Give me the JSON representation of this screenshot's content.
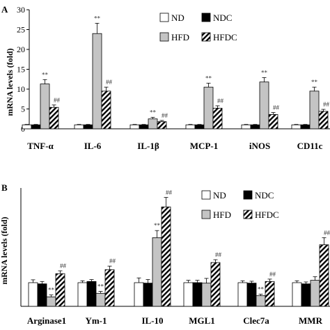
{
  "chart_data": [
    {
      "type": "bar",
      "panel_label": "A",
      "ylabel": "mRNA levels (fold)",
      "ylim": [
        0,
        30
      ],
      "yticks": [
        0,
        5,
        10,
        15,
        20,
        25,
        30
      ],
      "grid": false,
      "legend": "top-right",
      "categories": [
        "TNF-α",
        "IL-6",
        "IL-1β",
        "MCP-1",
        "iNOS",
        "CD11c"
      ],
      "series": [
        {
          "name": "ND",
          "values": [
            1,
            1,
            1,
            1,
            1,
            1
          ],
          "errors": [
            0.1,
            0.1,
            0.1,
            0.1,
            0.1,
            0.1
          ]
        },
        {
          "name": "NDC",
          "values": [
            1,
            1,
            1,
            1,
            1,
            1
          ],
          "errors": [
            0.1,
            0.1,
            0.1,
            0.1,
            0.1,
            0.1
          ]
        },
        {
          "name": "HFD",
          "values": [
            11.3,
            24,
            2.5,
            10.5,
            11.8,
            9.5
          ],
          "errors": [
            1.1,
            2.6,
            0.4,
            1.0,
            1.1,
            1.0
          ]
        },
        {
          "name": "HFDC",
          "values": [
            5.4,
            9.5,
            1.8,
            5.2,
            3.6,
            4.4
          ],
          "errors": [
            0.6,
            1.0,
            0.3,
            0.6,
            0.5,
            0.5
          ]
        }
      ],
      "annotations": [
        {
          "series": "HFD",
          "labels": [
            "**",
            "**",
            "**",
            "**",
            "**",
            "**"
          ]
        },
        {
          "series": "HFDC",
          "labels": [
            "##",
            "##",
            "##",
            "##",
            "##",
            "##"
          ]
        }
      ]
    },
    {
      "type": "bar",
      "panel_label": "B",
      "ylabel": "mRNA levels (fold)",
      "ylim": [
        0,
        5
      ],
      "yticks": [],
      "grid": false,
      "legend": "top-right",
      "categories": [
        "Arginase1",
        "Ym-1",
        "IL-10",
        "MGL1",
        "Clec7a",
        "MMR"
      ],
      "series": [
        {
          "name": "ND",
          "values": [
            1,
            1,
            1,
            1,
            1,
            1
          ],
          "errors": [
            0.12,
            0.08,
            0.2,
            0.1,
            0.08,
            0.08
          ]
        },
        {
          "name": "NDC",
          "values": [
            0.95,
            1.05,
            0.98,
            1.0,
            0.98,
            0.95
          ],
          "errors": [
            0.1,
            0.08,
            0.15,
            0.1,
            0.08,
            0.08
          ]
        },
        {
          "name": "HFD",
          "values": [
            0.4,
            0.55,
            2.9,
            0.98,
            0.45,
            1.1
          ],
          "errors": [
            0.08,
            0.08,
            0.3,
            0.2,
            0.06,
            0.15
          ]
        },
        {
          "name": "HFDC",
          "values": [
            1.38,
            1.55,
            4.2,
            1.85,
            1.05,
            2.6
          ],
          "errors": [
            0.12,
            0.15,
            0.4,
            0.12,
            0.1,
            0.3
          ]
        }
      ],
      "annotations": [
        {
          "series": "HFD",
          "labels": [
            "**",
            "**",
            "**",
            "",
            "**",
            ""
          ]
        },
        {
          "series": "HFDC",
          "labels": [
            "##",
            "##",
            "##",
            "##",
            "##",
            "##"
          ]
        }
      ]
    }
  ]
}
